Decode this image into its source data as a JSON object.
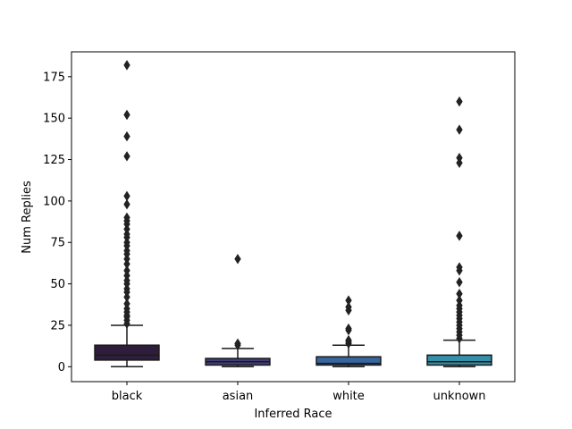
{
  "chart_data": {
    "type": "box",
    "xlabel": "Inferred Race",
    "ylabel": "Num Replies",
    "ylim": [
      -9,
      190
    ],
    "yticks": [
      0,
      25,
      50,
      75,
      100,
      125,
      150,
      175
    ],
    "categories": [
      "black",
      "asian",
      "white",
      "unknown"
    ],
    "colors": [
      "#2e1e3b",
      "#413d7b",
      "#37659e",
      "#348fa7"
    ],
    "boxes": [
      {
        "category": "black",
        "whislo": 0,
        "q1": 4,
        "median": 7,
        "q3": 13,
        "whishi": 25,
        "fliers": [
          26,
          28,
          30,
          31,
          33,
          35,
          38,
          42,
          45,
          47,
          50,
          52,
          55,
          58,
          62,
          65,
          68,
          70,
          73,
          75,
          78,
          80,
          83,
          86,
          88,
          90,
          98,
          103,
          127,
          139,
          152,
          182
        ]
      },
      {
        "category": "asian",
        "whislo": 0,
        "q1": 1,
        "median": 3,
        "q3": 5,
        "whishi": 11,
        "fliers": [
          13,
          14,
          65
        ]
      },
      {
        "category": "white",
        "whislo": 0,
        "q1": 1,
        "median": 2,
        "q3": 6,
        "whishi": 13,
        "fliers": [
          14,
          15,
          16,
          22,
          23,
          34,
          36,
          40
        ]
      },
      {
        "category": "unknown",
        "whislo": 0,
        "q1": 1,
        "median": 3,
        "q3": 7,
        "whishi": 16,
        "fliers": [
          17,
          19,
          21,
          23,
          25,
          27,
          29,
          31,
          33,
          35,
          37,
          40,
          44,
          51,
          58,
          60,
          79,
          123,
          126,
          143,
          160
        ]
      }
    ]
  }
}
